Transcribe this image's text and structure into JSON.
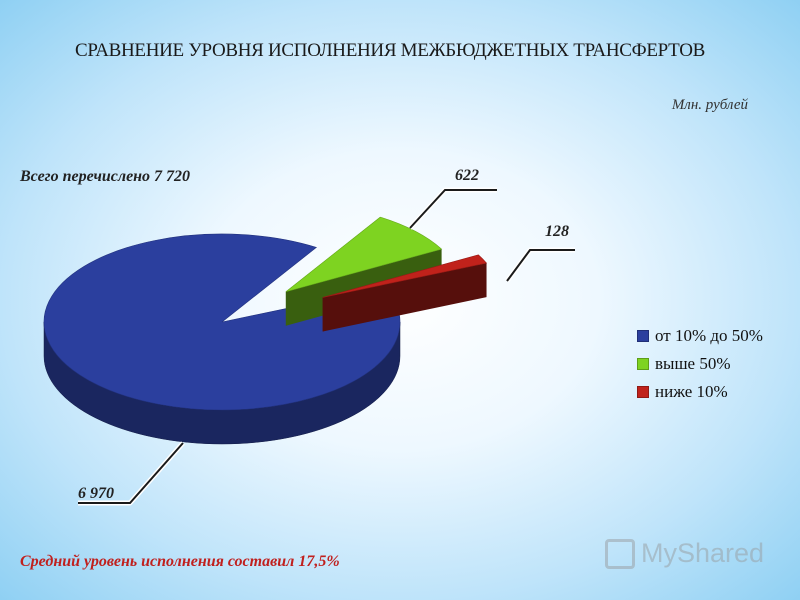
{
  "title": "СРАВНЕНИЕ УРОВНЯ ИСПОЛНЕНИЯ МЕЖБЮДЖЕТНЫХ ТРАНСФЕРТОВ",
  "units": "Млн. рублей",
  "total_text": "Всего перечислено 7 720",
  "footer_text": "Средний уровень исполнения составил 17,5%",
  "watermark": "MyShared",
  "chart_data": {
    "type": "pie",
    "title": "СРАВНЕНИЕ УРОВНЯ ИСПОЛНЕНИЯ МЕЖБЮДЖЕТНЫХ ТРАНСФЕРТОВ",
    "categories": [
      "от 10% до 50%",
      "выше 50%",
      "ниже 10%"
    ],
    "values": [
      6970,
      622,
      128
    ],
    "data_labels": [
      "6 970",
      "622",
      "128"
    ],
    "colors": [
      "#2b3f9e",
      "#7ed321",
      "#c0221b"
    ],
    "exploded": [
      false,
      true,
      true
    ],
    "legend_position": "right"
  }
}
